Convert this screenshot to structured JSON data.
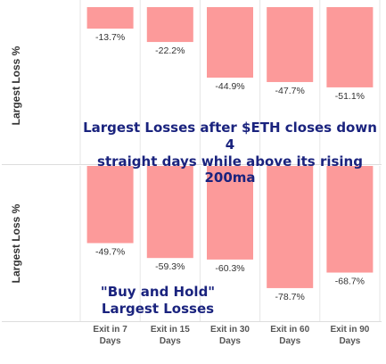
{
  "chart_data": [
    {
      "type": "bar",
      "ylabel": "Largest Loss %",
      "title": "Largest Losses after $ETH closes down 4 straight days while above its rising 200ma",
      "categories": [
        "Exit in 7 Days",
        "Exit in 15 Days",
        "Exit in 30 Days",
        "Exit in 60 Days",
        "Exit in 90 Days"
      ],
      "values": [
        -13.7,
        -22.2,
        -44.9,
        -47.7,
        -51.1
      ],
      "labels": [
        "-13.7%",
        "-22.2%",
        "-44.9%",
        "-47.7%",
        "-51.1%"
      ],
      "ylim": [
        -100,
        0
      ],
      "bar_color": "#fc9a9a"
    },
    {
      "type": "bar",
      "ylabel": "Largest Loss %",
      "title": "\"Buy and Hold\" Largest Losses",
      "categories": [
        "Exit in 7 Days",
        "Exit in 15 Days",
        "Exit in 30 Days",
        "Exit in 60 Days",
        "Exit in 90 Days"
      ],
      "values": [
        -49.7,
        -59.3,
        -60.3,
        -78.7,
        -68.7
      ],
      "labels": [
        "-49.7%",
        "-59.3%",
        "-60.3%",
        "-78.7%",
        "-68.7%"
      ],
      "ylim": [
        -100,
        0
      ],
      "bar_color": "#fc9a9a"
    }
  ],
  "x_tick_labels": [
    [
      "Exit in 7",
      "Days"
    ],
    [
      "Exit in 15",
      "Days"
    ],
    [
      "Exit in 30",
      "Days"
    ],
    [
      "Exit in 60",
      "Days"
    ],
    [
      "Exit in 90",
      "Days"
    ]
  ],
  "top_title_lines": [
    "Largest Losses after $ETH closes down 4",
    "straight days while above its rising 200ma"
  ],
  "bottom_title_lines": [
    "\"Buy and Hold\"",
    "Largest Losses"
  ],
  "colors": {
    "bar": "#fc9a9a",
    "title": "#1a237e",
    "grid": "#e6e6e6",
    "text": "#555555"
  }
}
